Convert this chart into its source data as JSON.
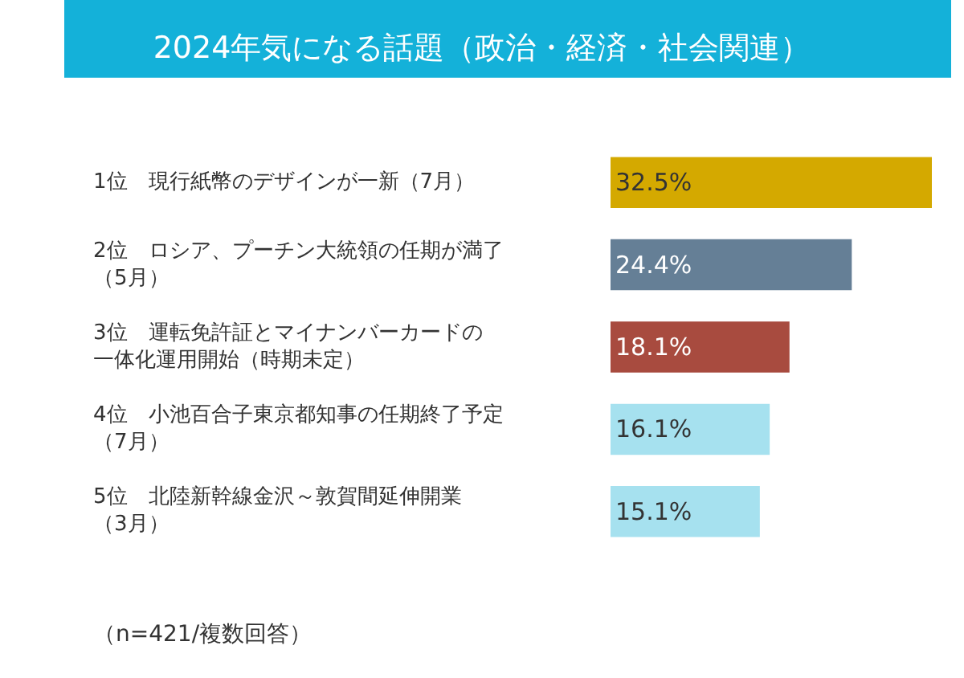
{
  "chart_data": {
    "type": "bar",
    "orientation": "horizontal",
    "title": "2024年気になる話題（政治・経済・社会関連）",
    "categories": [
      "1位　現行紙幣のデザインが一新（7月）",
      "2位　ロシア、プーチン大統領の任期が満了（5月）",
      "3位　運転免許証とマイナンバーカードの一体化運用開始（時期未定）",
      "4位　小池百合子東京都知事の任期終了予定（7月）",
      "5位　北陸新幹線金沢～敦賀間延伸開業（3月）"
    ],
    "values": [
      32.5,
      24.4,
      18.1,
      16.1,
      15.1
    ],
    "colors": [
      "#d4a900",
      "#657f96",
      "#a84b3f",
      "#a6e1ef",
      "#a6e1ef"
    ],
    "value_labels": [
      "32.5%",
      "24.4%",
      "18.1%",
      "16.1%",
      "15.1%"
    ],
    "annotations": [
      "（n=421/複数回答）"
    ]
  }
}
